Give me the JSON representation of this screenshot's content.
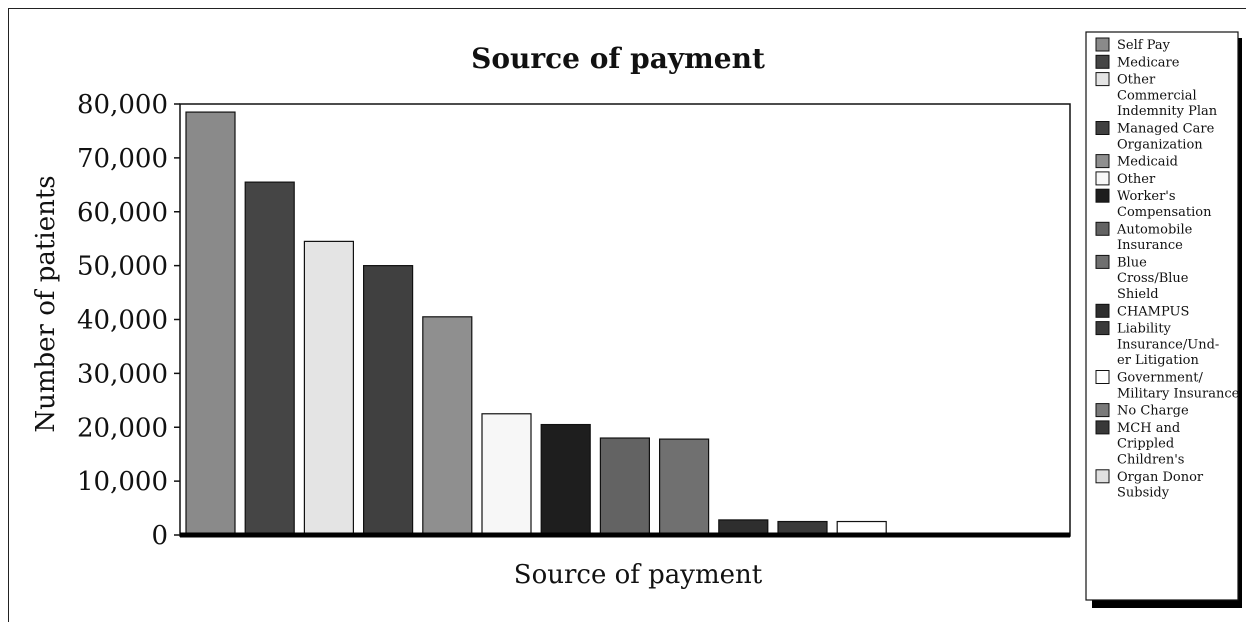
{
  "chart_data": {
    "type": "bar",
    "title": "Source of payment",
    "xlabel": "Source of payment",
    "ylabel": "Number of patients",
    "ylim": [
      0,
      80000
    ],
    "yticks": [
      {
        "value": 0,
        "label": "0"
      },
      {
        "value": 10000,
        "label": "10,000"
      },
      {
        "value": 20000,
        "label": "20,000"
      },
      {
        "value": 30000,
        "label": "30,000"
      },
      {
        "value": 40000,
        "label": "40,000"
      },
      {
        "value": 50000,
        "label": "50,000"
      },
      {
        "value": 60000,
        "label": "60,000"
      },
      {
        "value": 70000,
        "label": "70,000"
      },
      {
        "value": 80000,
        "label": "80,000"
      }
    ],
    "grid": false,
    "legend_position": "right",
    "series": [
      {
        "legend": [
          "Self Pay"
        ],
        "value": 78500,
        "color": "#8a8a8a"
      },
      {
        "legend": [
          "Medicare"
        ],
        "value": 65500,
        "color": "#454545"
      },
      {
        "legend": [
          "Other",
          "Commercial",
          "Indemnity Plan"
        ],
        "value": 54500,
        "color": "#e4e4e4"
      },
      {
        "legend": [
          "Managed Care",
          "Organization"
        ],
        "value": 50000,
        "color": "#404040"
      },
      {
        "legend": [
          "Medicaid"
        ],
        "value": 40500,
        "color": "#8f8f8f"
      },
      {
        "legend": [
          "Other"
        ],
        "value": 22500,
        "color": "#f7f7f7"
      },
      {
        "legend": [
          "Worker's",
          "Compensation"
        ],
        "value": 20500,
        "color": "#1e1e1e"
      },
      {
        "legend": [
          "Automobile",
          "Insurance"
        ],
        "value": 18000,
        "color": "#636363"
      },
      {
        "legend": [
          "Blue",
          "Cross/Blue",
          "Shield"
        ],
        "value": 17800,
        "color": "#707070"
      },
      {
        "legend": [
          "CHAMPUS"
        ],
        "value": 2800,
        "color": "#2e2e2e"
      },
      {
        "legend": [
          "Liability",
          "Insurance/Und-",
          "er Litigation"
        ],
        "value": 2500,
        "color": "#3a3a3a"
      },
      {
        "legend": [
          "Government/",
          "Military Insurance"
        ],
        "value": 2500,
        "color": "#ffffff"
      },
      {
        "legend": [
          "No Charge"
        ],
        "value": 300,
        "color": "#7a7a7a"
      },
      {
        "legend": [
          "MCH and",
          "Crippled",
          "Children's"
        ],
        "value": 200,
        "color": "#383838"
      },
      {
        "legend": [
          "Organ Donor",
          "Subsidy"
        ],
        "value": 100,
        "color": "#e0e0e0"
      }
    ]
  }
}
